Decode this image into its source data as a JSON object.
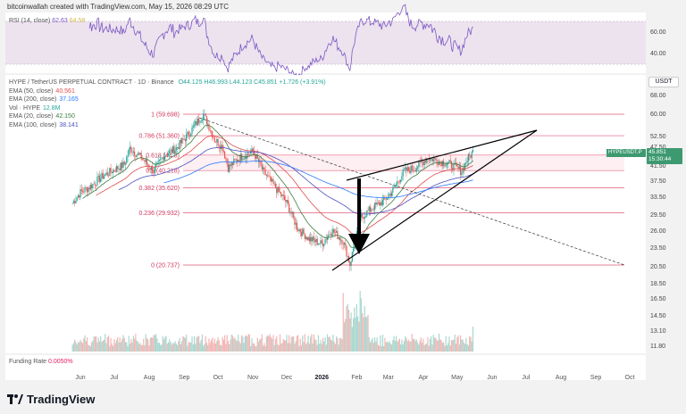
{
  "credit": "bitcoinwallah created with TradingView.com, May 15, 2026 08:29 UTC",
  "rsi": {
    "label_name": "RSI (14, close)",
    "value": "62.63",
    "value2": "64.58",
    "ticks": [
      "60.00",
      "40.00"
    ]
  },
  "legend": {
    "title": "HYPE / TetherUS PERPETUAL CONTRACT · 1D · Binance",
    "ohlc": "O44.125  H46.993  L44.123  C45.851  +1.726 (+3.91%)",
    "ema50_label": "EMA (50, close)",
    "ema50_value": "40.561",
    "ema200_label": "EMA (200, close)",
    "ema200_value": "37.165",
    "vol_label": "Vol · HYPE",
    "vol_value": "12.8M",
    "ema20_label": "EMA (20, close)",
    "ema20_value": "42.150",
    "ema100_label": "EMA (100, close)",
    "ema100_value": "38.141"
  },
  "currency": "USDT",
  "price_tag": {
    "price": "45.851",
    "countdown": "15:30:44"
  },
  "symbol_tag": "HYPEUSDT.P",
  "funding": {
    "label": "Funding Rate",
    "value": "0.0050%"
  },
  "brand": "TradingView",
  "chart_data": {
    "type": "candlestick",
    "x_ticks": [
      "Jun",
      "Jul",
      "Aug",
      "Sep",
      "Oct",
      "Nov",
      "Dec",
      "2026",
      "Feb",
      "Mar",
      "Apr",
      "May",
      "Jun",
      "Jul",
      "Aug",
      "Sep",
      "Oct"
    ],
    "y_ticks": [
      "68.00",
      "60.00",
      "52.50",
      "47.50",
      "41.50",
      "37.50",
      "33.50",
      "29.50",
      "26.00",
      "23.50",
      "20.50",
      "18.50",
      "16.50",
      "14.50",
      "13.10",
      "11.80"
    ],
    "fib_levels": [
      {
        "label": "1 (59.698)",
        "value": 59.698
      },
      {
        "label": "0.786 (51.360)",
        "value": 51.36
      },
      {
        "label": "0.618 (44.8)",
        "value": 44.8
      },
      {
        "label": "0.5 (40.218)",
        "value": 40.218
      },
      {
        "label": "0.382 (35.620)",
        "value": 35.62
      },
      {
        "label": "0.236 (29.932)",
        "value": 29.932
      },
      {
        "label": "0 (20.737)",
        "value": 20.737
      }
    ],
    "price_path": [
      [
        "2025-05-25",
        32.0
      ],
      [
        "2025-06-01",
        34.5
      ],
      [
        "2025-06-10",
        36.0
      ],
      [
        "2025-06-20",
        38.5
      ],
      [
        "2025-07-01",
        40.5
      ],
      [
        "2025-07-10",
        42.0
      ],
      [
        "2025-07-15",
        47.0
      ],
      [
        "2025-07-25",
        44.0
      ],
      [
        "2025-08-05",
        40.0
      ],
      [
        "2025-08-15",
        45.0
      ],
      [
        "2025-08-25",
        47.0
      ],
      [
        "2025-09-05",
        52.0
      ],
      [
        "2025-09-18",
        59.7
      ],
      [
        "2025-09-28",
        50.0
      ],
      [
        "2025-10-05",
        47.5
      ],
      [
        "2025-10-10",
        41.0
      ],
      [
        "2025-10-20",
        44.0
      ],
      [
        "2025-11-01",
        46.0
      ],
      [
        "2025-11-10",
        40.0
      ],
      [
        "2025-11-20",
        36.0
      ],
      [
        "2025-12-01",
        32.0
      ],
      [
        "2025-12-10",
        27.0
      ],
      [
        "2025-12-20",
        25.0
      ],
      [
        "2026-01-01",
        24.0
      ],
      [
        "2026-01-10",
        26.5
      ],
      [
        "2026-01-20",
        24.5
      ],
      [
        "2026-01-26",
        20.8
      ],
      [
        "2026-02-05",
        29.0
      ],
      [
        "2026-02-15",
        31.0
      ],
      [
        "2026-02-25",
        32.5
      ],
      [
        "2026-03-05",
        35.0
      ],
      [
        "2026-03-15",
        40.0
      ],
      [
        "2026-03-25",
        41.0
      ],
      [
        "2026-04-05",
        44.0
      ],
      [
        "2026-04-15",
        43.0
      ],
      [
        "2026-04-25",
        42.0
      ],
      [
        "2026-05-05",
        40.0
      ],
      [
        "2026-05-10",
        43.5
      ],
      [
        "2026-05-15",
        45.851
      ]
    ]
  }
}
